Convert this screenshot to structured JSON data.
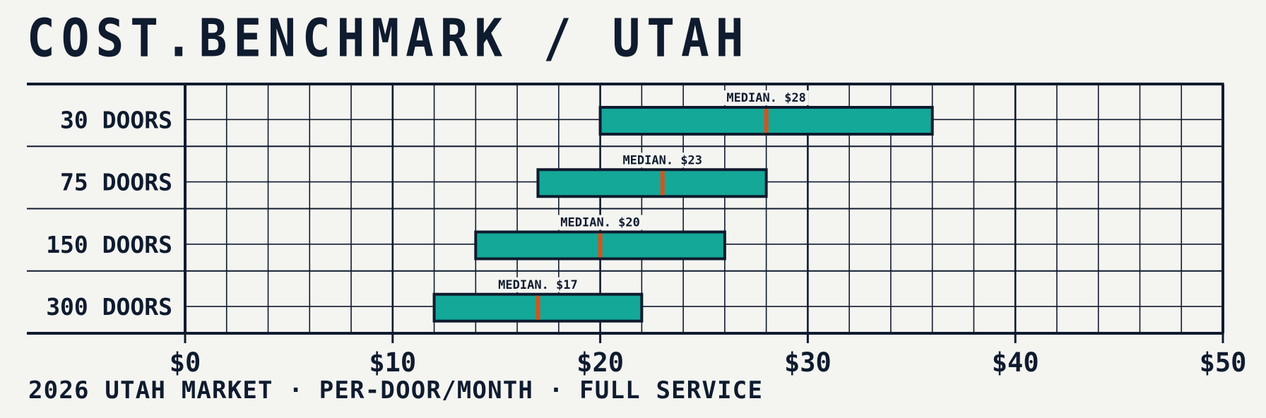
{
  "title": "COST.BENCHMARK / UTAH",
  "footer": "2026 UTAH MARKET · PER-DOOR/MONTH · FULL SERVICE",
  "colors": {
    "background": "#F4F4F1",
    "ink": "#0F1B2E",
    "bar_fill": "#14A898",
    "median": "#D4541E"
  },
  "chart_data": {
    "type": "bar",
    "subtype": "horizontal-range",
    "title": "COST.BENCHMARK / UTAH",
    "subtitle": "2026 UTAH MARKET · PER-DOOR/MONTH · FULL SERVICE",
    "xlabel": "",
    "ylabel": "",
    "xlim": [
      0,
      50
    ],
    "x_ticks": [
      0,
      10,
      20,
      30,
      40,
      50
    ],
    "x_tick_labels": [
      "$0",
      "$10",
      "$20",
      "$30",
      "$40",
      "$50"
    ],
    "minor_grid_step": 2,
    "grid": true,
    "categories": [
      "30 DOORS",
      "75 DOORS",
      "150 DOORS",
      "300 DOORS"
    ],
    "series": [
      {
        "name": "low",
        "values": [
          20,
          17,
          14,
          12
        ]
      },
      {
        "name": "high",
        "values": [
          36,
          28,
          26,
          22
        ]
      },
      {
        "name": "median",
        "values": [
          28,
          23,
          20,
          17
        ]
      }
    ],
    "annotations": [
      "MEDIAN. $28",
      "MEDIAN. $23",
      "MEDIAN. $20",
      "MEDIAN. $17"
    ],
    "legend": null
  }
}
